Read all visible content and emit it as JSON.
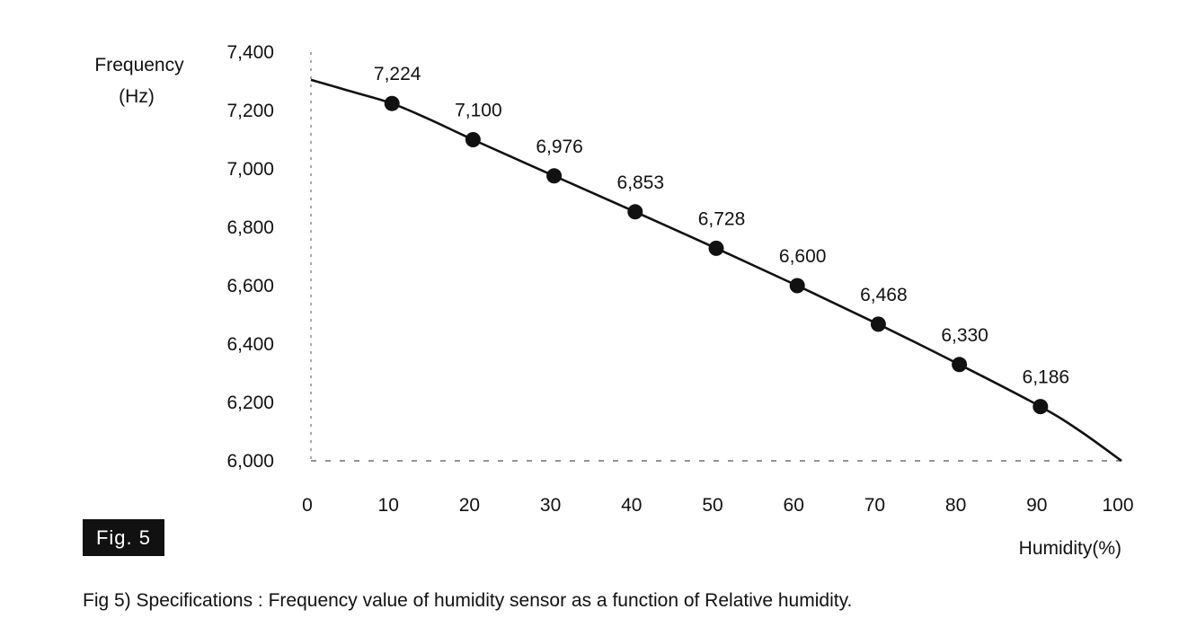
{
  "figure": {
    "badge": "Fig. 5",
    "caption": "Fig 5) Specifications : Frequency value of humidity sensor as a function of Relative humidity."
  },
  "chart_data": {
    "type": "line",
    "title": "",
    "ylabel_line1": "Frequency",
    "ylabel_line2": "(Hz)",
    "xlabel": "Humidity(%)",
    "xlim": [
      0,
      100
    ],
    "ylim": [
      6000,
      7400
    ],
    "x_ticks": [
      0,
      10,
      20,
      30,
      40,
      50,
      60,
      70,
      80,
      90,
      100
    ],
    "x_tick_labels": [
      "0",
      "10",
      "20",
      "30",
      "40",
      "50",
      "60",
      "70",
      "80",
      "90",
      "100"
    ],
    "y_ticks": [
      6000,
      6200,
      6400,
      6600,
      6800,
      7000,
      7200,
      7400
    ],
    "y_tick_labels": [
      "6,000",
      "6,200",
      "6,400",
      "6,600",
      "6,800",
      "7,000",
      "7,200",
      "7,400"
    ],
    "grid": false,
    "series": [
      {
        "line_color": "#111111",
        "curve": {
          "x": [
            0,
            5,
            10,
            15,
            20,
            30,
            40,
            50,
            60,
            70,
            80,
            90,
            95,
            100
          ],
          "y": [
            7305,
            7265,
            7224,
            7165,
            7100,
            6976,
            6853,
            6728,
            6600,
            6468,
            6330,
            6186,
            6100,
            6000
          ]
        },
        "markers": {
          "x": [
            10,
            20,
            30,
            40,
            50,
            60,
            70,
            80,
            90
          ],
          "y": [
            7224,
            7100,
            6976,
            6853,
            6728,
            6600,
            6468,
            6330,
            6186
          ],
          "labels": [
            "7,224",
            "7,100",
            "6,976",
            "6,853",
            "6,728",
            "6,600",
            "6,468",
            "6,330",
            "6,186"
          ]
        }
      }
    ]
  }
}
